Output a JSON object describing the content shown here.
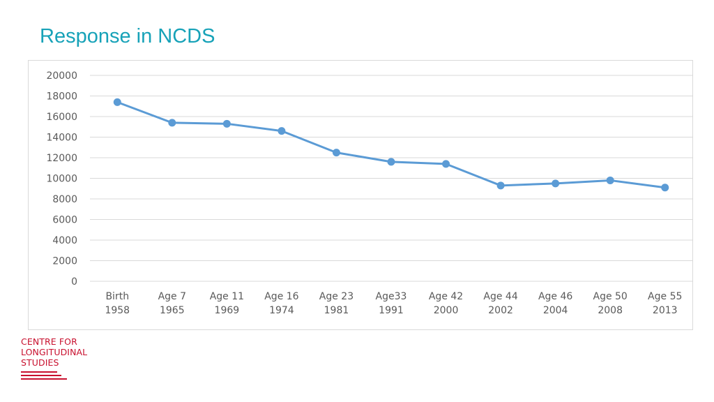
{
  "slide": {
    "title": "Response in NCDS"
  },
  "colors": {
    "title": "#17a2b8",
    "series": "#5b9bd5",
    "gridline": "#d9d9d9",
    "tick_text": "#595959",
    "logo": "#c8102e"
  },
  "logo": {
    "lines": [
      "CENTRE FOR",
      "LONGITUDINAL",
      "STUDIES"
    ]
  },
  "chart_data": {
    "type": "line",
    "title": "",
    "xlabel": "",
    "ylabel": "",
    "ylim": [
      0,
      20000
    ],
    "yticks": [
      0,
      2000,
      4000,
      6000,
      8000,
      10000,
      12000,
      14000,
      16000,
      18000,
      20000
    ],
    "grid": true,
    "legend": "none",
    "categories": [
      [
        "Birth",
        "1958"
      ],
      [
        "Age 7",
        "1965"
      ],
      [
        "Age 11",
        "1969"
      ],
      [
        "Age 16",
        "1974"
      ],
      [
        "Age 23",
        "1981"
      ],
      [
        "Age33",
        "1991"
      ],
      [
        "Age 42",
        "2000"
      ],
      [
        "Age 44",
        "2002"
      ],
      [
        "Age 46",
        "2004"
      ],
      [
        "Age 50",
        "2008"
      ],
      [
        "Age 55",
        "2013"
      ]
    ],
    "series": [
      {
        "values": [
          17400,
          15400,
          15300,
          14600,
          12500,
          11600,
          11400,
          9300,
          9500,
          9800,
          9100
        ]
      }
    ]
  }
}
